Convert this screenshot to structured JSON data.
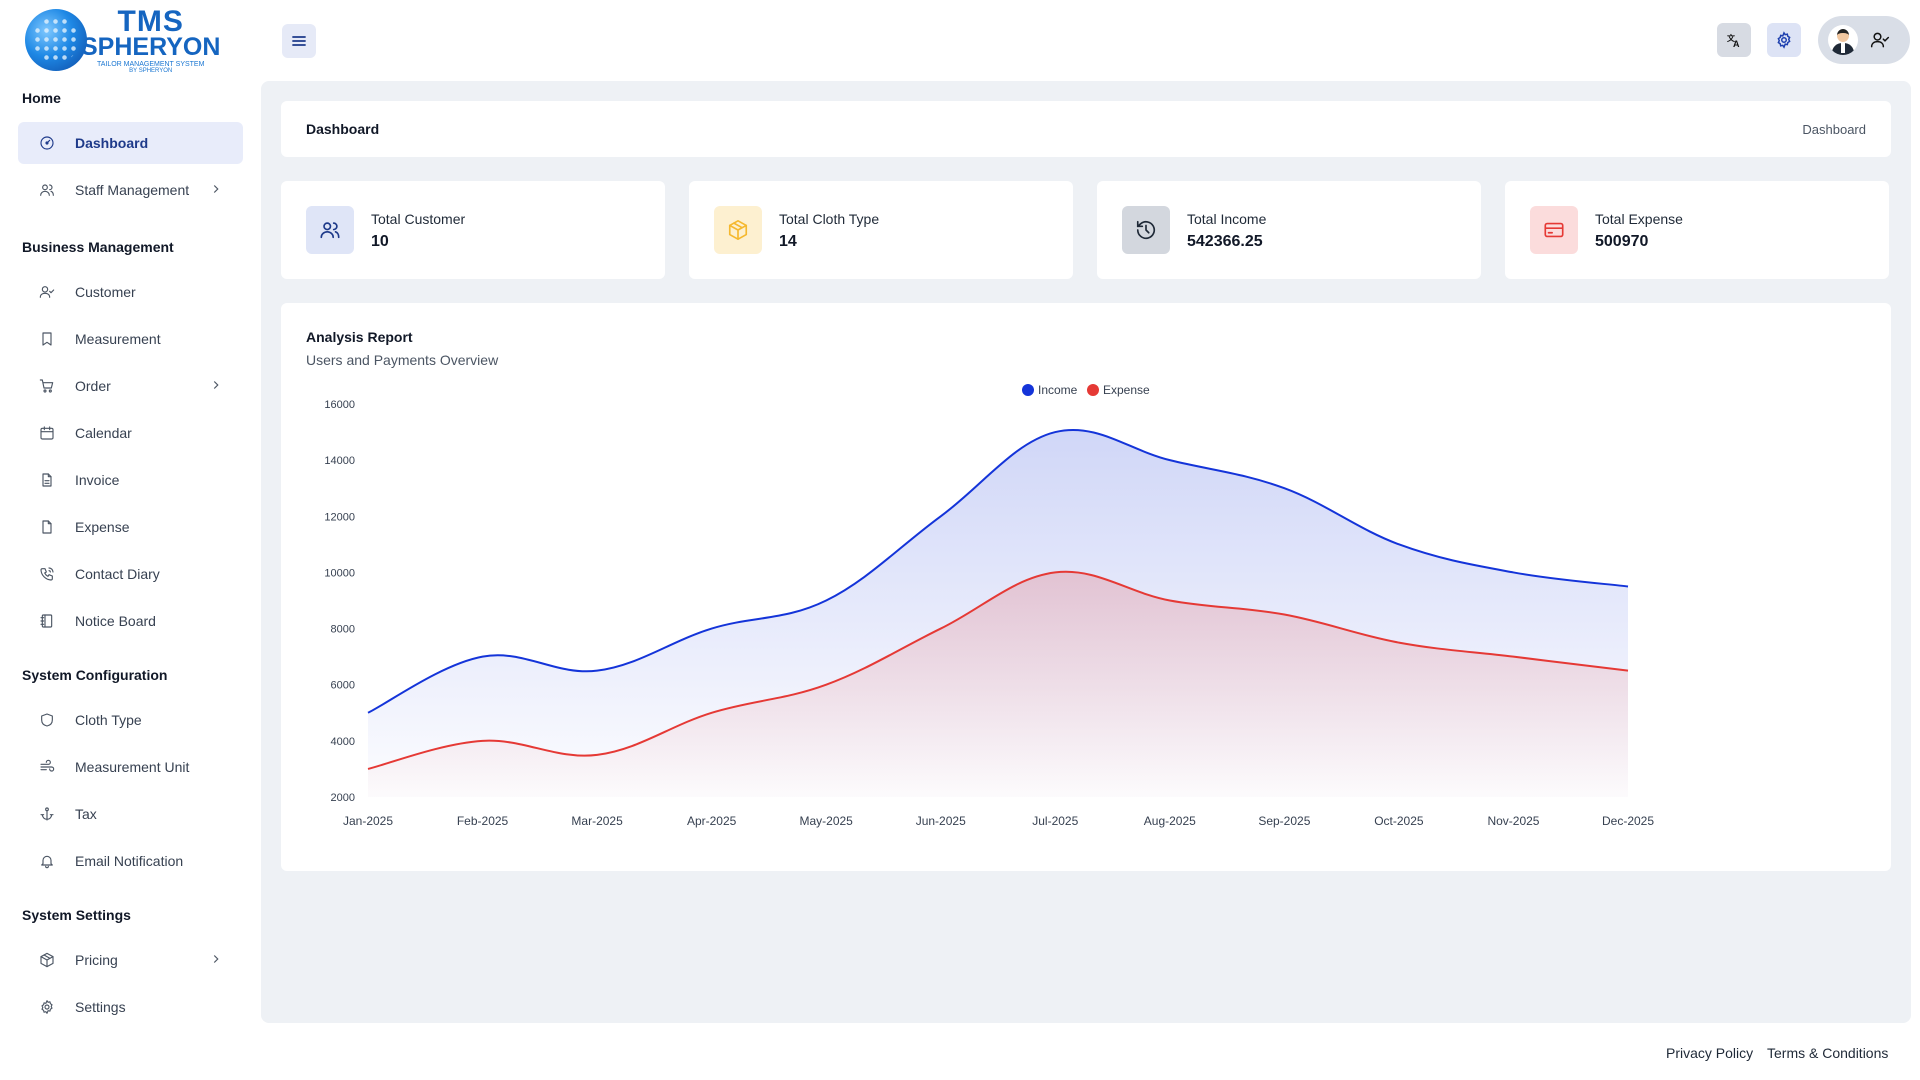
{
  "logo": {
    "line1": "TMS",
    "line2": "SPHERYON",
    "tagline": "TAILOR MANAGEMENT SYSTEM",
    "by": "BY SPHERYON"
  },
  "sidebar": {
    "sections": [
      {
        "title": "Home",
        "items": [
          {
            "label": "Dashboard",
            "icon": "gauge-icon",
            "active": true
          },
          {
            "label": "Staff Management",
            "icon": "users-icon",
            "chevron": true
          }
        ]
      },
      {
        "title": "Business Management",
        "items": [
          {
            "label": "Customer",
            "icon": "user-check-icon"
          },
          {
            "label": "Measurement",
            "icon": "bookmark-icon"
          },
          {
            "label": "Order",
            "icon": "cart-icon",
            "chevron": true
          },
          {
            "label": "Calendar",
            "icon": "calendar-icon"
          },
          {
            "label": "Invoice",
            "icon": "file-text-icon"
          },
          {
            "label": "Expense",
            "icon": "file-icon"
          },
          {
            "label": "Contact Diary",
            "icon": "phone-icon"
          },
          {
            "label": "Notice Board",
            "icon": "notebook-icon"
          }
        ]
      },
      {
        "title": "System Configuration",
        "items": [
          {
            "label": "Cloth Type",
            "icon": "shield-icon"
          },
          {
            "label": "Measurement Unit",
            "icon": "wind-icon"
          },
          {
            "label": "Tax",
            "icon": "anchor-icon"
          },
          {
            "label": "Email Notification",
            "icon": "bell-icon"
          }
        ]
      },
      {
        "title": "System Settings",
        "items": [
          {
            "label": "Pricing",
            "icon": "package-icon",
            "chevron": true
          },
          {
            "label": "Settings",
            "icon": "gear-icon"
          }
        ]
      }
    ]
  },
  "header": {
    "menu_icon": "hamburger-icon",
    "translate_icon": "translate-icon",
    "settings_icon": "gear-icon"
  },
  "breadcrumb": {
    "title": "Dashboard",
    "current": "Dashboard"
  },
  "stats": [
    {
      "label": "Total Customer",
      "value": "10",
      "icon": "users-icon",
      "bg": "#dfe5f7",
      "color": "#1e3a8a"
    },
    {
      "label": "Total Cloth Type",
      "value": "14",
      "icon": "package-icon",
      "bg": "#fdf0d0",
      "color": "#f5b82e"
    },
    {
      "label": "Total Income",
      "value": "542366.25",
      "icon": "history-icon",
      "bg": "#d3d7de",
      "color": "#1f2937"
    },
    {
      "label": "Total Expense",
      "value": "500970",
      "icon": "credit-card-icon",
      "bg": "#fbdcdc",
      "color": "#e53935"
    }
  ],
  "chart": {
    "title": "Analysis Report",
    "subtitle": "Users and Payments Overview"
  },
  "chart_data": {
    "type": "area",
    "categories": [
      "Jan-2025",
      "Feb-2025",
      "Mar-2025",
      "Apr-2025",
      "May-2025",
      "Jun-2025",
      "Jul-2025",
      "Aug-2025",
      "Sep-2025",
      "Oct-2025",
      "Nov-2025",
      "Dec-2025"
    ],
    "series": [
      {
        "name": "Income",
        "color": "#1434d9",
        "values": [
          5000,
          7000,
          6500,
          8000,
          9000,
          12000,
          15000,
          14000,
          13000,
          11000,
          10000,
          9500
        ]
      },
      {
        "name": "Expense",
        "color": "#e53935",
        "values": [
          3000,
          4000,
          3500,
          5000,
          6000,
          8000,
          10000,
          9000,
          8500,
          7500,
          7000,
          6500
        ]
      }
    ],
    "yticks": [
      2000,
      4000,
      6000,
      8000,
      10000,
      12000,
      14000,
      16000
    ],
    "ylim": [
      2000,
      16000
    ],
    "legend": "top-center",
    "grid": false
  },
  "footer": {
    "privacy": "Privacy Policy",
    "terms": "Terms & Conditions"
  }
}
